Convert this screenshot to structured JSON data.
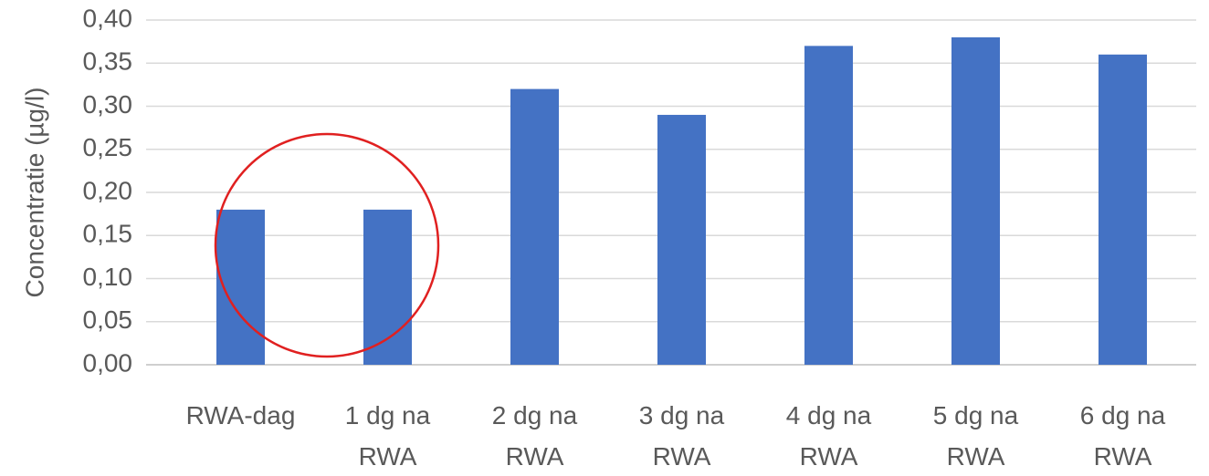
{
  "chart_data": {
    "type": "bar",
    "y_label": "Concentratie (µg/l)",
    "categories": [
      "RWA-dag",
      "1 dg na RWA",
      "2 dg na RWA",
      "3 dg na RWA",
      "4 dg na RWA",
      "5 dg na RWA",
      "6 dg na RWA"
    ],
    "values": [
      0.18,
      0.18,
      0.32,
      0.29,
      0.37,
      0.38,
      0.36
    ],
    "color": "#4472c4",
    "ylim": [
      0,
      0.4
    ],
    "yticks": [
      {
        "value": 0,
        "label": "0,00"
      },
      {
        "value": 0.05,
        "label": "0,05"
      },
      {
        "value": 0.1,
        "label": "0,10"
      },
      {
        "value": 0.15,
        "label": "0,15"
      },
      {
        "value": 0.2,
        "label": "0,20"
      },
      {
        "value": 0.25,
        "label": "0,25"
      },
      {
        "value": 0.3,
        "label": "0,30"
      },
      {
        "value": 0.35,
        "label": "0,35"
      },
      {
        "value": 0.4,
        "label": "0,40"
      }
    ],
    "grid": true
  }
}
